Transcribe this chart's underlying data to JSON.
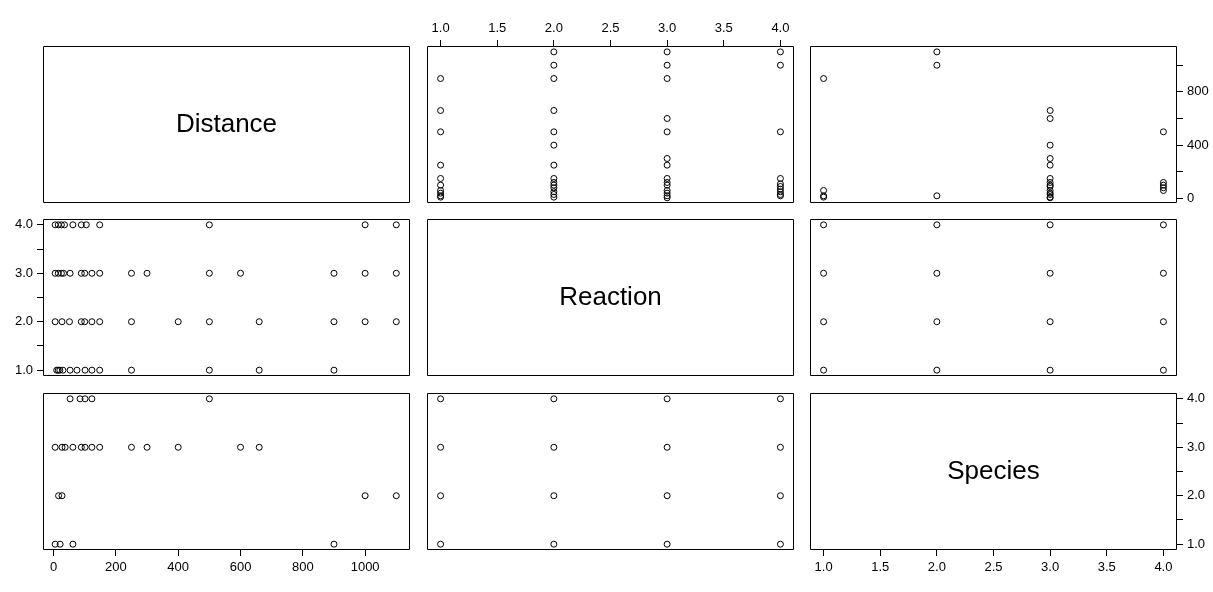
{
  "chart_data": [
    {
      "type": "other",
      "title": "Distance"
    },
    {
      "type": "scatter",
      "marker": "circle",
      "tick_labels": "x",
      "xlim": [
        0.88,
        4.12
      ],
      "xticks": [
        {
          "value": 1,
          "label": "1.0"
        },
        1.5,
        {
          "value": 2,
          "label": "2.0"
        },
        2.5,
        {
          "value": 3,
          "label": "3.0"
        },
        3.5,
        {
          "value": 4,
          "label": "4.0"
        }
      ],
      "ylim": [
        -34,
        1144
      ],
      "x": [
        1,
        1,
        1,
        1,
        1,
        1,
        1,
        1,
        1,
        1,
        2,
        2,
        2,
        2,
        2,
        2,
        2,
        2,
        2,
        2,
        2,
        2,
        2,
        2,
        3,
        3,
        3,
        3,
        3,
        3,
        3,
        3,
        3,
        3,
        3,
        3,
        3,
        3,
        4,
        4,
        4,
        4,
        4,
        4,
        4,
        4,
        4,
        4
      ],
      "values": [
        900,
        660,
        500,
        250,
        150,
        100,
        60,
        40,
        20,
        10,
        1100,
        1000,
        900,
        660,
        500,
        400,
        250,
        150,
        120,
        100,
        80,
        50,
        30,
        10,
        1100,
        1000,
        900,
        600,
        500,
        300,
        250,
        150,
        120,
        100,
        60,
        40,
        20,
        5,
        1100,
        1000,
        500,
        150,
        110,
        90,
        70,
        50,
        30,
        20
      ],
      "color": "#000000"
    },
    {
      "type": "scatter",
      "marker": "circle",
      "tick_labels": "y",
      "xlim": [
        0.88,
        4.12
      ],
      "ylim": [
        -34,
        1144
      ],
      "yticks": [
        0,
        {
          "value": 200,
          "label": null
        },
        400,
        {
          "value": 600,
          "label": null
        },
        800,
        {
          "value": 1000,
          "label": null
        }
      ],
      "x": [
        1,
        1,
        1,
        1,
        2,
        2,
        2,
        3,
        3,
        3,
        3,
        3,
        3,
        3,
        3,
        3,
        3,
        3,
        3,
        3,
        3,
        4,
        4,
        4,
        4,
        4
      ],
      "values": [
        900,
        60,
        20,
        10,
        1100,
        1000,
        20,
        660,
        600,
        400,
        300,
        250,
        150,
        120,
        100,
        90,
        60,
        40,
        30,
        10,
        5,
        500,
        120,
        100,
        80,
        60
      ],
      "color": "#000000"
    },
    {
      "type": "scatter",
      "marker": "circle",
      "tick_labels": "y",
      "xlim": [
        -34,
        1144
      ],
      "ylim": [
        0.88,
        4.12
      ],
      "yticks": [
        {
          "value": 1,
          "label": "1.0"
        },
        {
          "value": 1.5,
          "label": null
        },
        {
          "value": 2,
          "label": "2.0"
        },
        {
          "value": 2.5,
          "label": null
        },
        {
          "value": 3,
          "label": "3.0"
        },
        {
          "value": 3.5,
          "label": null
        },
        {
          "value": 4,
          "label": "4.0"
        }
      ],
      "x": [
        5,
        15,
        25,
        35,
        62,
        89,
        105,
        148,
        500,
        1000,
        1100,
        5,
        15,
        25,
        32,
        53,
        89,
        100,
        123,
        148,
        250,
        300,
        500,
        600,
        900,
        1000,
        1100,
        5,
        27,
        51,
        89,
        100,
        123,
        148,
        250,
        400,
        500,
        660,
        900,
        1000,
        1100,
        10,
        15,
        20,
        30,
        53,
        75,
        101,
        123,
        148,
        250,
        500,
        660,
        900
      ],
      "values": [
        4,
        4,
        4,
        4,
        4,
        4,
        4,
        4,
        4,
        4,
        4,
        3,
        3,
        3,
        3,
        3,
        3,
        3,
        3,
        3,
        3,
        3,
        3,
        3,
        3,
        3,
        3,
        2,
        2,
        2,
        2,
        2,
        2,
        2,
        2,
        2,
        2,
        2,
        2,
        2,
        2,
        1,
        1,
        1,
        1,
        1,
        1,
        1,
        1,
        1,
        1,
        1,
        1,
        1
      ],
      "color": "#000000"
    },
    {
      "type": "other",
      "title": "Reaction"
    },
    {
      "type": "scatter",
      "marker": "circle",
      "tick_labels": false,
      "xlim": [
        0.88,
        4.12
      ],
      "ylim": [
        0.88,
        4.12
      ],
      "x": [
        1,
        1,
        1,
        1,
        2,
        2,
        2,
        2,
        3,
        3,
        3,
        3,
        4,
        4,
        4,
        4
      ],
      "values": [
        1,
        2,
        3,
        4,
        1,
        2,
        3,
        4,
        1,
        2,
        3,
        4,
        1,
        2,
        3,
        4
      ],
      "color": "#000000"
    },
    {
      "type": "scatter",
      "marker": "circle",
      "tick_labels": "x",
      "xlim": [
        -34,
        1144
      ],
      "xticks": [
        0,
        200,
        400,
        600,
        800,
        1000
      ],
      "ylim": [
        0.88,
        4.12
      ],
      "x": [
        53,
        85,
        101,
        123,
        500,
        5,
        27,
        37,
        62,
        89,
        101,
        123,
        148,
        250,
        300,
        400,
        600,
        660,
        16,
        27,
        1000,
        1100,
        5,
        21,
        62,
        900
      ],
      "values": [
        4,
        4,
        4,
        4,
        4,
        3,
        3,
        3,
        3,
        3,
        3,
        3,
        3,
        3,
        3,
        3,
        3,
        3,
        2,
        2,
        2,
        2,
        1,
        1,
        1,
        1
      ],
      "color": "#000000"
    },
    {
      "type": "scatter",
      "marker": "circle",
      "tick_labels": false,
      "xlim": [
        0.88,
        4.12
      ],
      "ylim": [
        0.88,
        4.12
      ],
      "x": [
        1,
        1,
        1,
        1,
        2,
        2,
        2,
        2,
        3,
        3,
        3,
        3,
        4,
        4,
        4,
        4
      ],
      "values": [
        1,
        2,
        3,
        4,
        1,
        2,
        3,
        4,
        1,
        2,
        3,
        4,
        1,
        2,
        3,
        4
      ],
      "color": "#000000"
    },
    {
      "type": "scatter",
      "title": "Species",
      "xlim": [
        0.88,
        4.12
      ],
      "xticks": [
        {
          "value": 1,
          "label": "1.0"
        },
        1.5,
        {
          "value": 2,
          "label": "2.0"
        },
        2.5,
        {
          "value": 3,
          "label": "3.0"
        },
        3.5,
        {
          "value": 4,
          "label": "4.0"
        }
      ],
      "ylim": [
        0.88,
        4.12
      ],
      "yticks": [
        {
          "value": 1,
          "label": "1.0"
        },
        {
          "value": 1.5,
          "label": null
        },
        {
          "value": 2,
          "label": "2.0"
        },
        {
          "value": 2.5,
          "label": null
        },
        {
          "value": 3,
          "label": "3.0"
        },
        {
          "value": 3.5,
          "label": null
        },
        {
          "value": 4,
          "label": "4.0"
        }
      ]
    }
  ]
}
